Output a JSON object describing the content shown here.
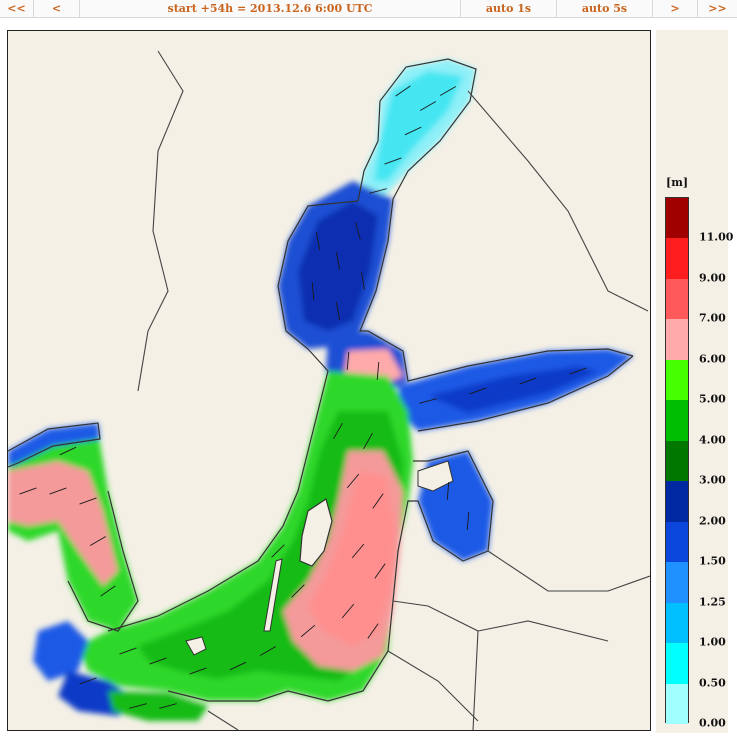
{
  "toolbar": {
    "first": "<<",
    "prev": "<",
    "title": "start +54h  =  2013.12.6 6:00 UTC",
    "auto1": "auto 1s",
    "auto5": "auto 5s",
    "next": ">",
    "last": ">>"
  },
  "legend": {
    "unit": "[m]",
    "bins": [
      {
        "color": "#a0ffff",
        "label": "0.00"
      },
      {
        "color": "#00ffff",
        "label": "0.50"
      },
      {
        "color": "#00bfff",
        "label": "1.00"
      },
      {
        "color": "#1e90ff",
        "label": "1.25"
      },
      {
        "color": "#0a46dc",
        "label": "1.50"
      },
      {
        "color": "#0028a0",
        "label": "2.00"
      },
      {
        "color": "#007800",
        "label": "3.00"
      },
      {
        "color": "#00be00",
        "label": "4.00"
      },
      {
        "color": "#46ff00",
        "label": "5.00"
      },
      {
        "color": "#ffaaaa",
        "label": "6.00"
      },
      {
        "color": "#ff5a5a",
        "label": "7.00"
      },
      {
        "color": "#ff1e1e",
        "label": "9.00"
      },
      {
        "color": "#a00000",
        "label": "11.00"
      }
    ]
  },
  "map": {
    "land_color": "#f4f0e6",
    "coast_color": "#333333"
  }
}
